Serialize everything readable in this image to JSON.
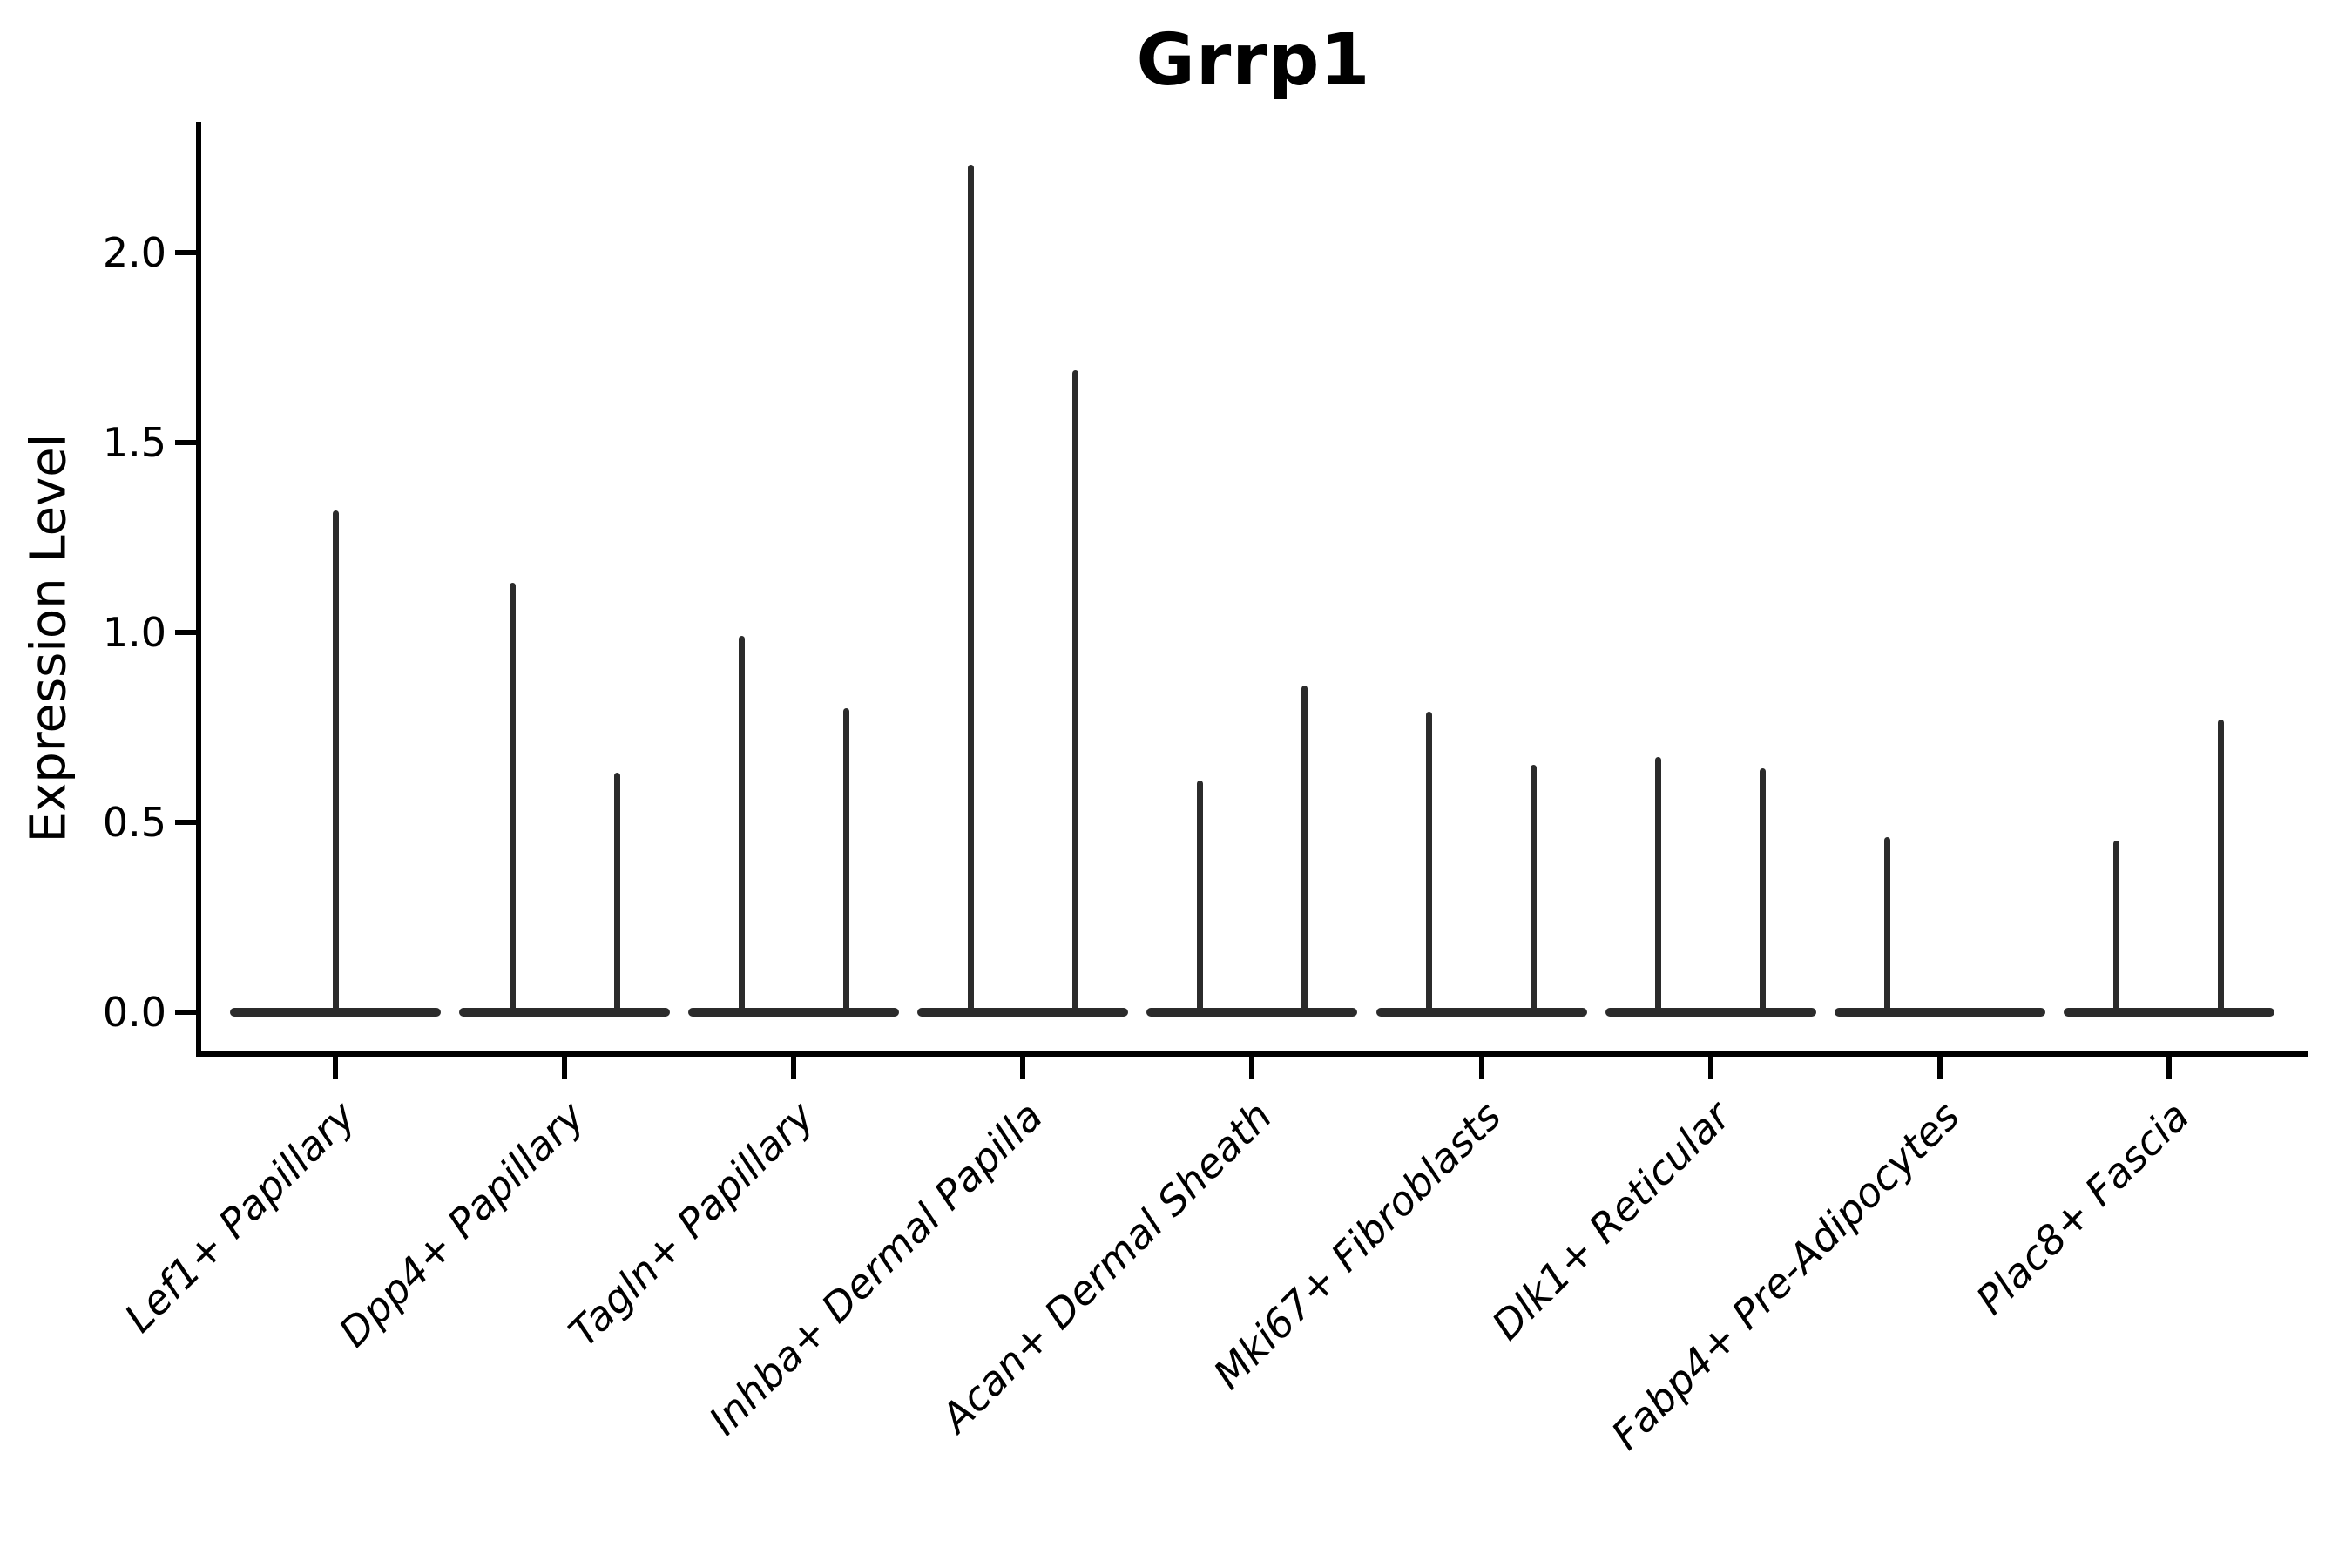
{
  "title": "Grrp1",
  "chart_data": {
    "type": "violin",
    "title": "Grrp1",
    "xlabel": "",
    "ylabel": "Expression Level",
    "ylim": [
      0,
      2.33
    ],
    "yticks": [
      0.0,
      0.5,
      1.0,
      1.5,
      2.0
    ],
    "ytick_labels": [
      "0.0",
      "0.5",
      "1.0",
      "1.5",
      "2.0"
    ],
    "grid": false,
    "legend_position": "none",
    "categories": [
      "Lef1+ Papillary",
      "Dpp4+ Papillary",
      "Tagln+ Papillary",
      "Inhba+ Dermal Papilla",
      "Acan+ Dermal Sheath",
      "Mki67+ Fibroblasts",
      "Dlk1+ Reticular",
      "Fabp4+ Pre-Adipocytes",
      "Plac8+ Fascia"
    ],
    "violins": [
      {
        "category": "Lef1+ Papillary",
        "spikes": [
          {
            "position": "center",
            "max_expression": 1.32
          }
        ]
      },
      {
        "category": "Dpp4+ Papillary",
        "spikes": [
          {
            "position": "left",
            "max_expression": 1.13
          },
          {
            "position": "right",
            "max_expression": 0.63
          }
        ]
      },
      {
        "category": "Tagln+ Papillary",
        "spikes": [
          {
            "position": "left",
            "max_expression": 0.99
          },
          {
            "position": "right",
            "max_expression": 0.8
          }
        ]
      },
      {
        "category": "Inhba+ Dermal Papilla",
        "spikes": [
          {
            "position": "left",
            "max_expression": 2.23
          },
          {
            "position": "right",
            "max_expression": 1.69
          }
        ]
      },
      {
        "category": "Acan+ Dermal Sheath",
        "spikes": [
          {
            "position": "left",
            "max_expression": 0.61
          },
          {
            "position": "right",
            "max_expression": 0.86
          }
        ]
      },
      {
        "category": "Mki67+ Fibroblasts",
        "spikes": [
          {
            "position": "left",
            "max_expression": 0.79
          },
          {
            "position": "right",
            "max_expression": 0.65
          }
        ]
      },
      {
        "category": "Dlk1+ Reticular",
        "spikes": [
          {
            "position": "left",
            "max_expression": 0.67
          },
          {
            "position": "right",
            "max_expression": 0.64
          }
        ]
      },
      {
        "category": "Fabp4+ Pre-Adipocytes",
        "spikes": [
          {
            "position": "left",
            "max_expression": 0.46
          }
        ]
      },
      {
        "category": "Plac8+ Fascia",
        "spikes": [
          {
            "position": "left",
            "max_expression": 0.45
          },
          {
            "position": "right",
            "max_expression": 0.77
          }
        ]
      }
    ],
    "colors": {
      "violin": "#2b2b2b",
      "axis": "#000000",
      "text": "#000000",
      "background": "#ffffff"
    }
  }
}
